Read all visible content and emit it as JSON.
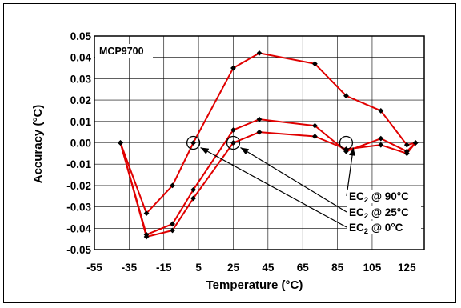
{
  "chart_data": {
    "type": "line",
    "title": "",
    "xlabel": "Temperature (°C)",
    "ylabel": "Accuracy (°C)",
    "xlim": [
      -55,
      135
    ],
    "ylim": [
      -0.05,
      0.05
    ],
    "x_ticks": [
      "-55",
      "-35",
      "-15",
      "5",
      "25",
      "45",
      "65",
      "85",
      "105",
      "125"
    ],
    "y_ticks": [
      "0.05",
      "0.04",
      "0.03",
      "0.02",
      "0.01",
      "0.00",
      "-0.01",
      "-0.02",
      "-0.03",
      "-0.04",
      "-0.05"
    ],
    "grid": true,
    "legend_box": "MCP9700",
    "series": [
      {
        "x": [
          -40,
          -25,
          -10,
          2,
          25,
          40,
          72,
          90,
          110,
          125,
          130
        ],
        "y": [
          0.0,
          -0.033,
          -0.02,
          0.0,
          0.035,
          0.042,
          0.037,
          0.022,
          0.015,
          -0.001,
          0.0
        ]
      },
      {
        "x": [
          -40,
          -25,
          -10,
          2,
          25,
          40,
          72,
          90,
          110,
          125,
          130
        ],
        "y": [
          0.0,
          -0.043,
          -0.038,
          -0.022,
          0.006,
          0.011,
          0.008,
          -0.004,
          0.002,
          -0.004,
          0.0
        ]
      },
      {
        "x": [
          -40,
          -25,
          -10,
          2,
          25,
          40,
          72,
          90,
          110,
          125,
          130
        ],
        "y": [
          0.0,
          -0.044,
          -0.041,
          -0.026,
          0.0,
          0.005,
          0.003,
          -0.003,
          -0.001,
          -0.005,
          0.0
        ]
      }
    ],
    "annotations": [
      {
        "label": "EC",
        "sub": "2",
        "suffix": " @ 90°C",
        "target_x": 90,
        "target_y": 0.0
      },
      {
        "label": "EC",
        "sub": "2",
        "suffix": " @ 25°C",
        "target_x": 25,
        "target_y": 0.0
      },
      {
        "label": "EC",
        "sub": "2",
        "suffix": " @ 0°C",
        "target_x": 2,
        "target_y": 0.0
      }
    ],
    "colors": {
      "line": "#e00000",
      "marker": "#000000",
      "grid": "#000000"
    }
  }
}
